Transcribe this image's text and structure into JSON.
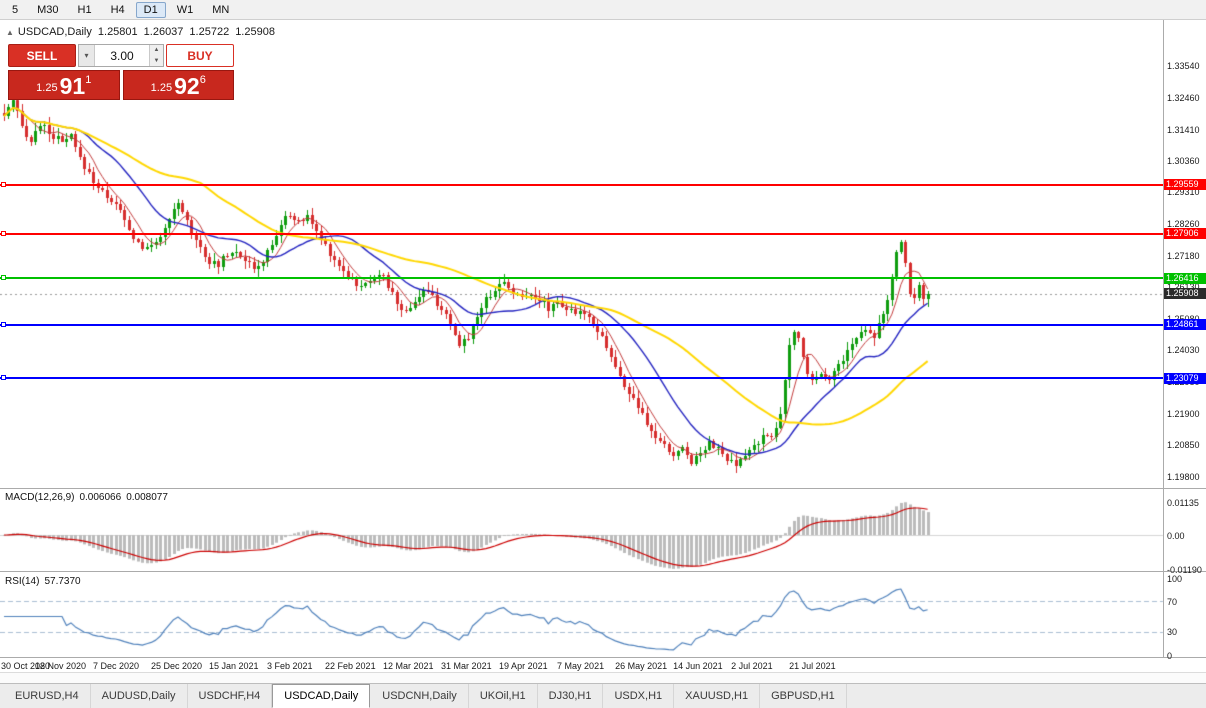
{
  "toolbar": {
    "timeframes": [
      {
        "label": "5",
        "active": false
      },
      {
        "label": "M30",
        "active": false
      },
      {
        "label": "H1",
        "active": false
      },
      {
        "label": "H4",
        "active": false
      },
      {
        "label": "D1",
        "active": true
      },
      {
        "label": "W1",
        "active": false
      },
      {
        "label": "MN",
        "active": false
      }
    ]
  },
  "chart_header": {
    "collapse_icon": "▲",
    "title": "USDCAD,Daily",
    "open": "1.25801",
    "high": "1.26037",
    "low": "1.25722",
    "close": "1.25908"
  },
  "trade_panel": {
    "sell_label": "SELL",
    "buy_label": "BUY",
    "volume": "3.00",
    "bid": {
      "prefix": "1.25",
      "big": "91",
      "sup": "1"
    },
    "ask": {
      "prefix": "1.25",
      "big": "92",
      "sup": "6"
    }
  },
  "chart_data": {
    "type": "candlestick",
    "symbol": "USDCAD",
    "period": "Daily",
    "bars": 208,
    "bars_per_label": 13,
    "up_color": "#0f9d0f",
    "down_color": "#d62e2e",
    "anchors": [
      [
        0,
        1.3185
      ],
      [
        2,
        1.323
      ],
      [
        4,
        1.315
      ],
      [
        6,
        1.31
      ],
      [
        8,
        1.316
      ],
      [
        10,
        1.313
      ],
      [
        13,
        1.3095
      ],
      [
        15,
        1.3115
      ],
      [
        17,
        1.304
      ],
      [
        19,
        1.2995
      ],
      [
        21,
        1.2945
      ],
      [
        24,
        1.2905
      ],
      [
        26,
        1.2865
      ],
      [
        28,
        1.28
      ],
      [
        30,
        1.276
      ],
      [
        32,
        1.2735
      ],
      [
        34,
        1.277
      ],
      [
        36,
        1.28
      ],
      [
        38,
        1.2865
      ],
      [
        39,
        1.289
      ],
      [
        40,
        1.2865
      ],
      [
        42,
        1.28
      ],
      [
        44,
        1.275
      ],
      [
        46,
        1.27
      ],
      [
        48,
        1.268
      ],
      [
        49,
        1.2715
      ],
      [
        52,
        1.274
      ],
      [
        54,
        1.2705
      ],
      [
        56,
        1.2668
      ],
      [
        58,
        1.27
      ],
      [
        60,
        1.2755
      ],
      [
        62,
        1.282
      ],
      [
        64,
        1.286
      ],
      [
        66,
        1.2825
      ],
      [
        68,
        1.2855
      ],
      [
        70,
        1.2795
      ],
      [
        72,
        1.2755
      ],
      [
        74,
        1.2705
      ],
      [
        76,
        1.2668
      ],
      [
        78,
        1.2638
      ],
      [
        80,
        1.2608
      ],
      [
        82,
        1.2642
      ],
      [
        84,
        1.2662
      ],
      [
        86,
        1.2618
      ],
      [
        88,
        1.2558
      ],
      [
        90,
        1.2528
      ],
      [
        92,
        1.2568
      ],
      [
        94,
        1.2602
      ],
      [
        96,
        1.2578
      ],
      [
        98,
        1.2542
      ],
      [
        100,
        1.2478
      ],
      [
        102,
        1.2418
      ],
      [
        104,
        1.2448
      ],
      [
        106,
        1.2518
      ],
      [
        108,
        1.2572
      ],
      [
        110,
        1.2608
      ],
      [
        112,
        1.2628
      ],
      [
        114,
        1.2598
      ],
      [
        116,
        1.2572
      ],
      [
        118,
        1.2598
      ],
      [
        120,
        1.2572
      ],
      [
        122,
        1.2542
      ],
      [
        124,
        1.2568
      ],
      [
        126,
        1.2538
      ],
      [
        128,
        1.2518
      ],
      [
        130,
        1.2532
      ],
      [
        132,
        1.2492
      ],
      [
        134,
        1.2448
      ],
      [
        136,
        1.2378
      ],
      [
        138,
        1.2308
      ],
      [
        140,
        1.2258
      ],
      [
        142,
        1.2208
      ],
      [
        144,
        1.2148
      ],
      [
        146,
        1.2112
      ],
      [
        148,
        1.2078
      ],
      [
        150,
        1.2052
      ],
      [
        152,
        1.2072
      ],
      [
        154,
        1.2032
      ],
      [
        156,
        1.2058
      ],
      [
        158,
        1.2098
      ],
      [
        160,
        1.2068
      ],
      [
        162,
        1.2032
      ],
      [
        164,
        1.2012
      ],
      [
        166,
        1.2048
      ],
      [
        168,
        1.2082
      ],
      [
        170,
        1.2108
      ],
      [
        172,
        1.2122
      ],
      [
        174,
        1.2178
      ],
      [
        175,
        1.2295
      ],
      [
        176,
        1.2415
      ],
      [
        177,
        1.2462
      ],
      [
        178,
        1.2438
      ],
      [
        179,
        1.2388
      ],
      [
        180,
        1.2328
      ],
      [
        181,
        1.2298
      ],
      [
        183,
        1.2332
      ],
      [
        185,
        1.2302
      ],
      [
        187,
        1.2352
      ],
      [
        189,
        1.2398
      ],
      [
        191,
        1.2442
      ],
      [
        193,
        1.2478
      ],
      [
        195,
        1.2452
      ],
      [
        197,
        1.2528
      ],
      [
        198,
        1.2568
      ],
      [
        199,
        1.2638
      ],
      [
        200,
        1.2718
      ],
      [
        201,
        1.2768
      ],
      [
        202,
        1.2688
      ],
      [
        203,
        1.2598
      ],
      [
        204,
        1.2572
      ],
      [
        205,
        1.2612
      ],
      [
        206,
        1.2578
      ],
      [
        207,
        1.2591
      ]
    ],
    "price_axis": {
      "ticks": [
        "1.33540",
        "1.32460",
        "1.31410",
        "1.30360",
        "1.29310",
        "1.28260",
        "1.27180",
        "1.26130",
        "1.25080",
        "1.24030",
        "1.22980",
        "1.21900",
        "1.20850",
        "1.19800"
      ]
    },
    "horizontal_lines": [
      {
        "label": "1.29559",
        "color": "#ff0000"
      },
      {
        "label": "1.27906",
        "color": "#ff0000"
      },
      {
        "label": "1.26416",
        "color": "#00c000"
      },
      {
        "label": "1.24861",
        "color": "#0000ff"
      },
      {
        "label": "1.23079",
        "color": "#0000ff"
      }
    ],
    "current_price": {
      "label": "1.25908",
      "tag_color": "#2b2b2b"
    },
    "moving_averages": [
      {
        "period": 6,
        "color": "#c23b3b",
        "width": 1
      },
      {
        "period": 18,
        "color": "#2323c0",
        "width": 1.4
      },
      {
        "period": 45,
        "color": "#ffd700",
        "width": 2
      }
    ],
    "macd": {
      "title": "MACD(12,26,9)",
      "value_main": "0.006066",
      "value_signal": "0.008077",
      "fast": 12,
      "slow": 26,
      "signal": 9,
      "ticks": [
        "0.01135",
        "0.00",
        "-0.01190"
      ],
      "histogram_color": "#bbbbbb",
      "signal_color": "#cc0000"
    },
    "rsi": {
      "title": "RSI(14)",
      "value": "57.7370",
      "period": 14,
      "levels": [
        70,
        30
      ],
      "ticks": [
        "100",
        "70",
        "30",
        "0"
      ],
      "line_color": "#4f81bb"
    },
    "dates": [
      "30 Oct 2020",
      "18 Nov 2020",
      "7 Dec 2020",
      "25 Dec 2020",
      "15 Jan 2021",
      "3 Feb 2021",
      "22 Feb 2021",
      "12 Mar 2021",
      "31 Mar 2021",
      "19 Apr 2021",
      "7 May 2021",
      "26 May 2021",
      "14 Jun 2021",
      "2 Jul 2021",
      "21 Jul 2021"
    ]
  },
  "tabs": {
    "items": [
      {
        "label": "EURUSD,H4",
        "active": false
      },
      {
        "label": "AUDUSD,Daily",
        "active": false
      },
      {
        "label": "USDCHF,H4",
        "active": false
      },
      {
        "label": "USDCAD,Daily",
        "active": true
      },
      {
        "label": "USDCNH,Daily",
        "active": false
      },
      {
        "label": "UKOil,H1",
        "active": false
      },
      {
        "label": "DJ30,H1",
        "active": false
      },
      {
        "label": "USDX,H1",
        "active": false
      },
      {
        "label": "XAUUSD,H1",
        "active": false
      },
      {
        "label": "GBPUSD,H1",
        "active": false
      }
    ]
  }
}
